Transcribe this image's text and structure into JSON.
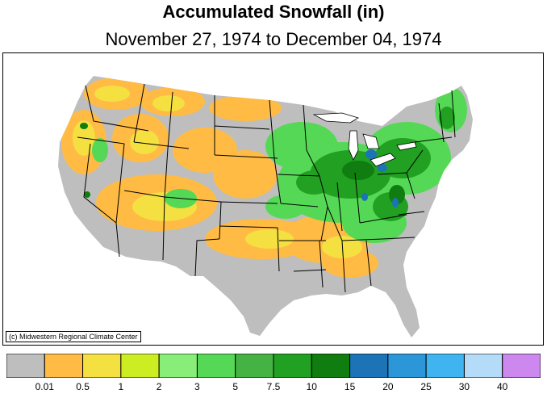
{
  "title": "Accumulated Snowfall (in)",
  "subtitle": "November 27, 1974 to December 04, 1974",
  "credit": "(c) Midwestern Regional Climate Center",
  "legend": {
    "colors": [
      "#bebebe",
      "#ffbb44",
      "#f4e040",
      "#cced22",
      "#88ee77",
      "#55d855",
      "#44b344",
      "#22a022",
      "#0f7d0f",
      "#1c74b7",
      "#2b96d8",
      "#3fb4f0",
      "#b4dcf8",
      "#cc88ee"
    ],
    "labels": [
      "0.01",
      "0.5",
      "1",
      "2",
      "3",
      "5",
      "7.5",
      "10",
      "15",
      "20",
      "25",
      "30",
      "40"
    ]
  },
  "colors": {
    "no_snow": "#bebebe",
    "light": "#ffbb44",
    "moderate": "#55d855",
    "heavy": "#0f7d0f",
    "very_heavy": "#1c74b7"
  }
}
